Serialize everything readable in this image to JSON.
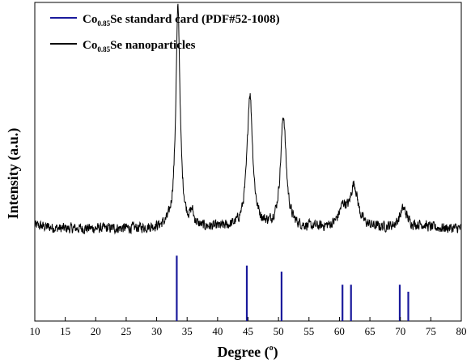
{
  "chart_data": {
    "type": "line",
    "xlabel": "Degree (°)",
    "xlabel_main": "Degree (",
    "xlabel_unit": "o",
    "xlabel_close": ")",
    "ylabel": "Intensity (a.u.)",
    "xlim": [
      10,
      80
    ],
    "ylim": [
      0,
      100
    ],
    "x_ticks": [
      10,
      15,
      20,
      25,
      30,
      35,
      40,
      45,
      50,
      55,
      60,
      65,
      70,
      75,
      80
    ],
    "legend_position": "top-left",
    "grid": false,
    "y_ticks_labeled": false,
    "legend": [
      {
        "prefix": "Co",
        "sub": "0.85",
        "suffix": "Se standard card (PDF#52-1008)",
        "color": "#1a1a9c"
      },
      {
        "prefix": "Co",
        "sub": "0.85",
        "suffix": "Se nanoparticles",
        "color": "#000000"
      }
    ],
    "series": [
      {
        "kind": "stick",
        "color": "#1a1a9c",
        "x": [
          33.3,
          44.8,
          50.5,
          60.5,
          61.9,
          69.9,
          71.3
        ],
        "y": [
          20.5,
          17.4,
          15.5,
          11.4,
          11.4,
          11.4,
          9.2
        ]
      },
      {
        "kind": "line",
        "color": "#000000",
        "baseline": 29,
        "noise": 1.6,
        "peaks": [
          {
            "x": 33.5,
            "height": 69,
            "width": 0.42
          },
          {
            "x": 35.8,
            "height": 4,
            "width": 0.35
          },
          {
            "x": 45.3,
            "height": 42,
            "width": 0.55
          },
          {
            "x": 50.8,
            "height": 35,
            "width": 0.55
          },
          {
            "x": 60.6,
            "height": 6,
            "width": 0.8
          },
          {
            "x": 62.4,
            "height": 13,
            "width": 0.75
          },
          {
            "x": 70.5,
            "height": 6,
            "width": 0.75
          },
          {
            "x": 73.5,
            "height": 1,
            "width": 1.0
          }
        ]
      }
    ]
  }
}
